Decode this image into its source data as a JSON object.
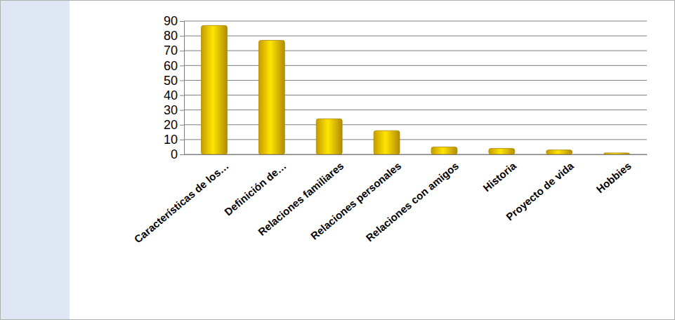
{
  "chart_data": {
    "type": "bar",
    "categories": [
      "Características de los…",
      "Definición de…",
      "Relaciones familiares",
      "Relaciones personales",
      "Relaciones con  amigos",
      "Historia",
      "Proyecto de vida",
      "Hobbies"
    ],
    "values": [
      87,
      77,
      24,
      16,
      5,
      4,
      3,
      1
    ],
    "color": "#f5c000",
    "ylim": [
      0,
      90
    ],
    "yticks": [
      0,
      10,
      20,
      30,
      40,
      50,
      60,
      70,
      80,
      90
    ],
    "grid": true
  }
}
